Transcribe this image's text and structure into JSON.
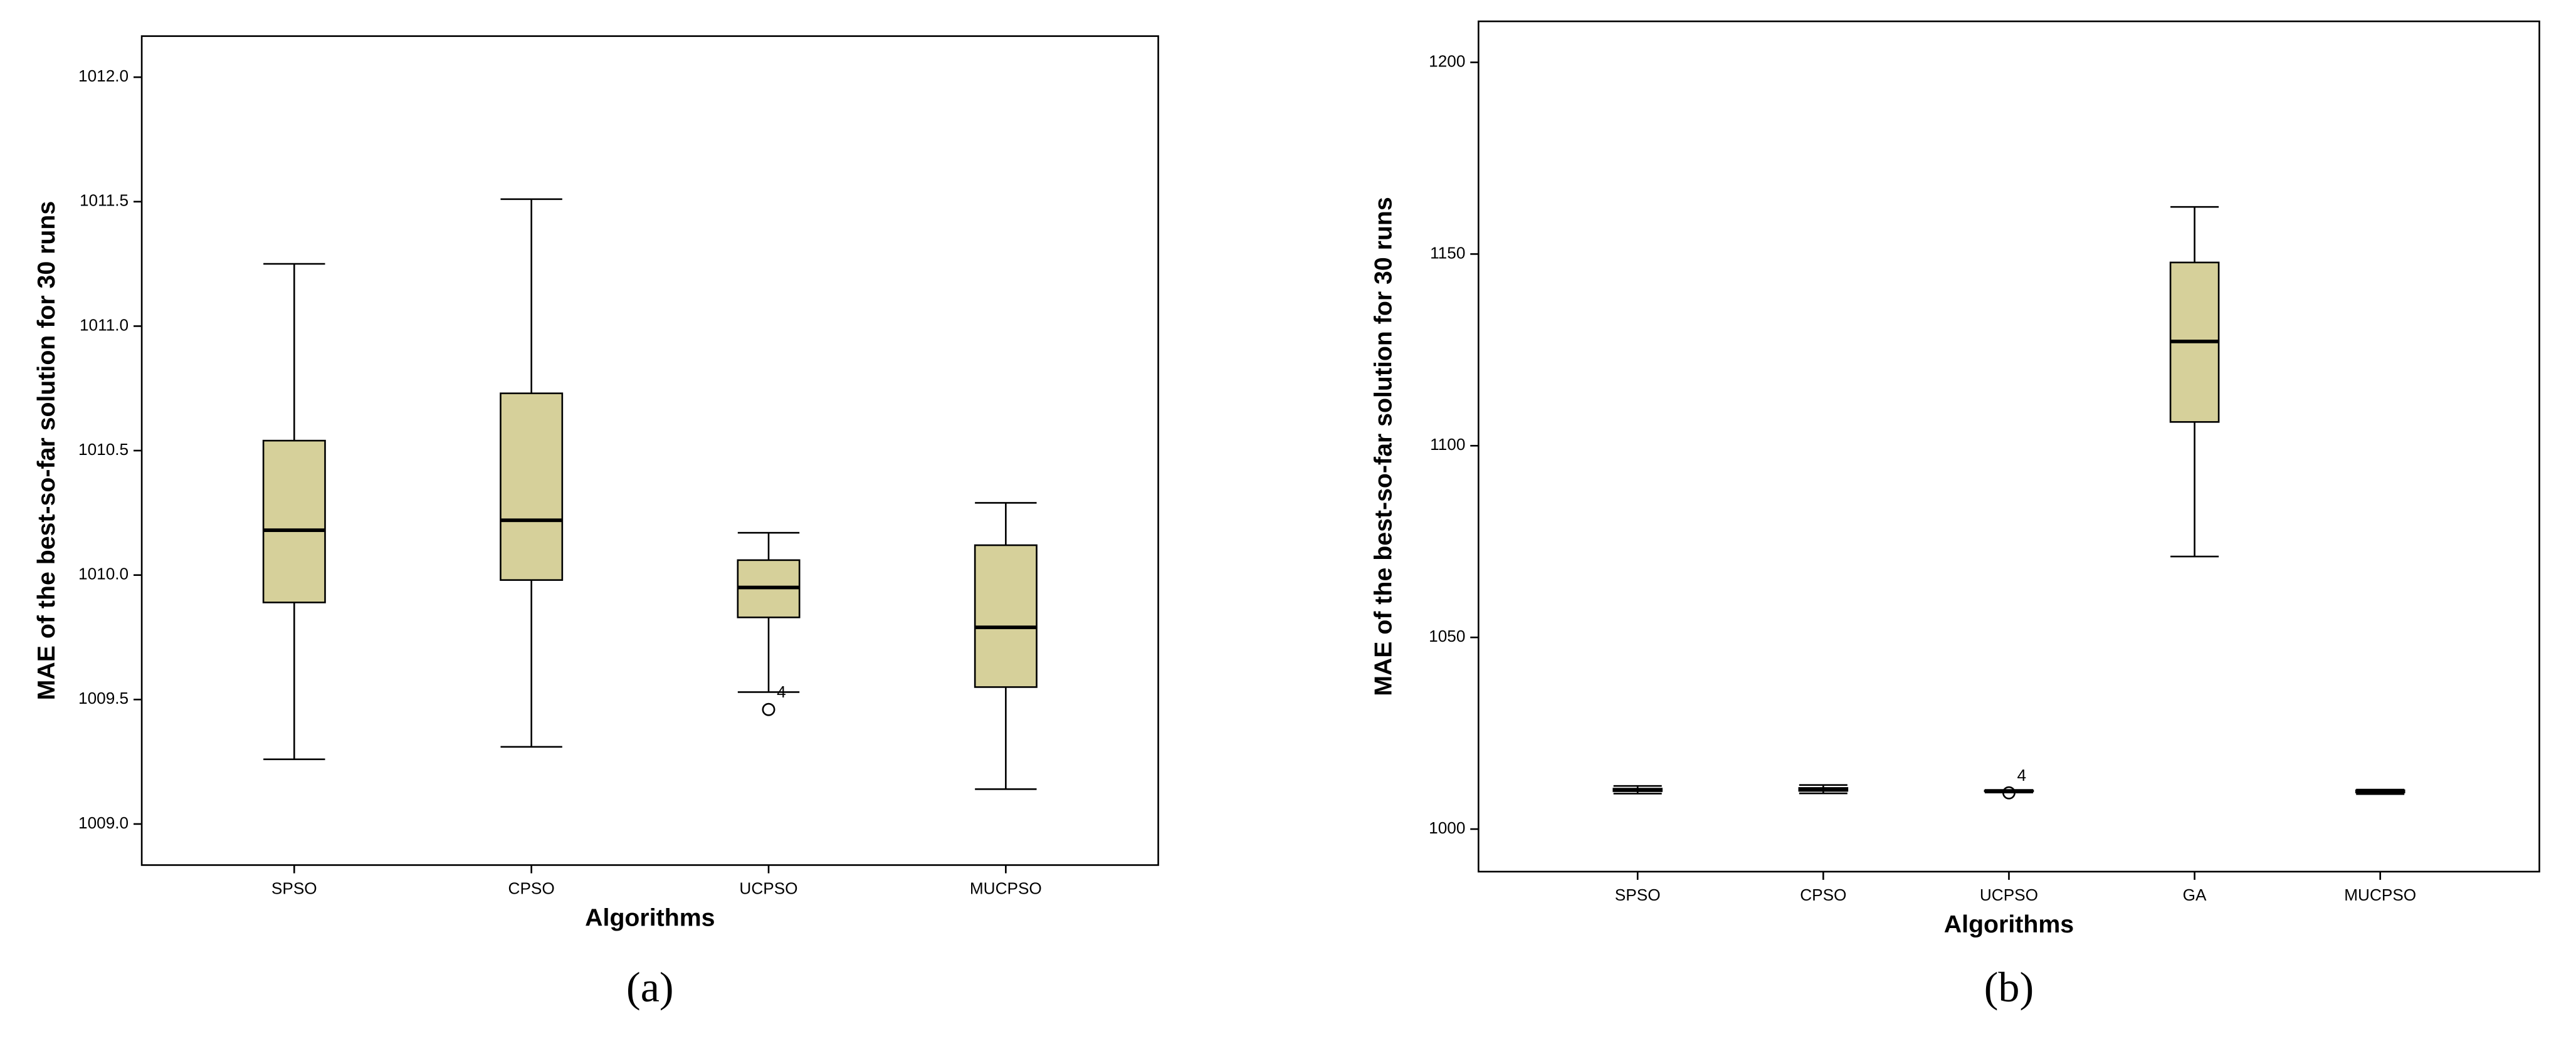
{
  "chart_data": [
    {
      "type": "box",
      "caption": "(a)",
      "x_label": "Algorithms",
      "y_label": "MAE of the best-so-far solution for 30 runs",
      "categories": [
        "SPSO",
        "CPSO",
        "UCPSO",
        "MUCPSO"
      ],
      "min": [
        1009.26,
        1009.31,
        1009.53,
        1009.14
      ],
      "q1": [
        1009.89,
        1009.98,
        1009.83,
        1009.55
      ],
      "median": [
        1010.18,
        1010.22,
        1009.95,
        1009.79
      ],
      "q3": [
        1010.54,
        1010.73,
        1010.06,
        1010.12
      ],
      "max": [
        1011.25,
        1011.51,
        1010.17,
        1010.29
      ],
      "outliers": [
        [],
        [],
        [
          {
            "value": 1009.46,
            "label": "4"
          }
        ],
        []
      ],
      "color": "#d6d09a",
      "ylim": [
        1008.835,
        1012.165
      ],
      "yticks": [
        {
          "value": 1009,
          "label": "1009.0"
        },
        1009.5,
        {
          "value": 1010,
          "label": "1010.0"
        },
        1010.5,
        {
          "value": 1011,
          "label": "1011.0"
        },
        1011.5,
        {
          "value": 1012,
          "label": "1012.0"
        }
      ],
      "grid": false
    },
    {
      "type": "box",
      "caption": "(b)",
      "x_label": "Algorithms",
      "y_label": "MAE of the best-so-far solution for 30 runs",
      "categories": [
        "SPSO",
        "CPSO",
        "UCPSO",
        "GA",
        "MUCPSO"
      ],
      "min": [
        1009.26,
        1009.31,
        1009.53,
        1071.1,
        1009.14
      ],
      "q1": [
        1009.89,
        1009.98,
        1009.83,
        1106.2,
        1009.55
      ],
      "median": [
        1010.18,
        1010.22,
        1009.95,
        1127.2,
        1009.79
      ],
      "q3": [
        1010.54,
        1010.73,
        1010.06,
        1147.8,
        1010.12
      ],
      "max": [
        1011.25,
        1011.51,
        1010.17,
        1162.3,
        1010.29
      ],
      "outliers": [
        [],
        [],
        [
          {
            "value": 1009.46,
            "label": "4"
          }
        ],
        [],
        []
      ],
      "color": "#d6d09a",
      "ylim": [
        988.9,
        1210.7
      ],
      "yticks": [
        1000,
        1050,
        1100,
        1150,
        1200
      ],
      "grid": false
    }
  ]
}
